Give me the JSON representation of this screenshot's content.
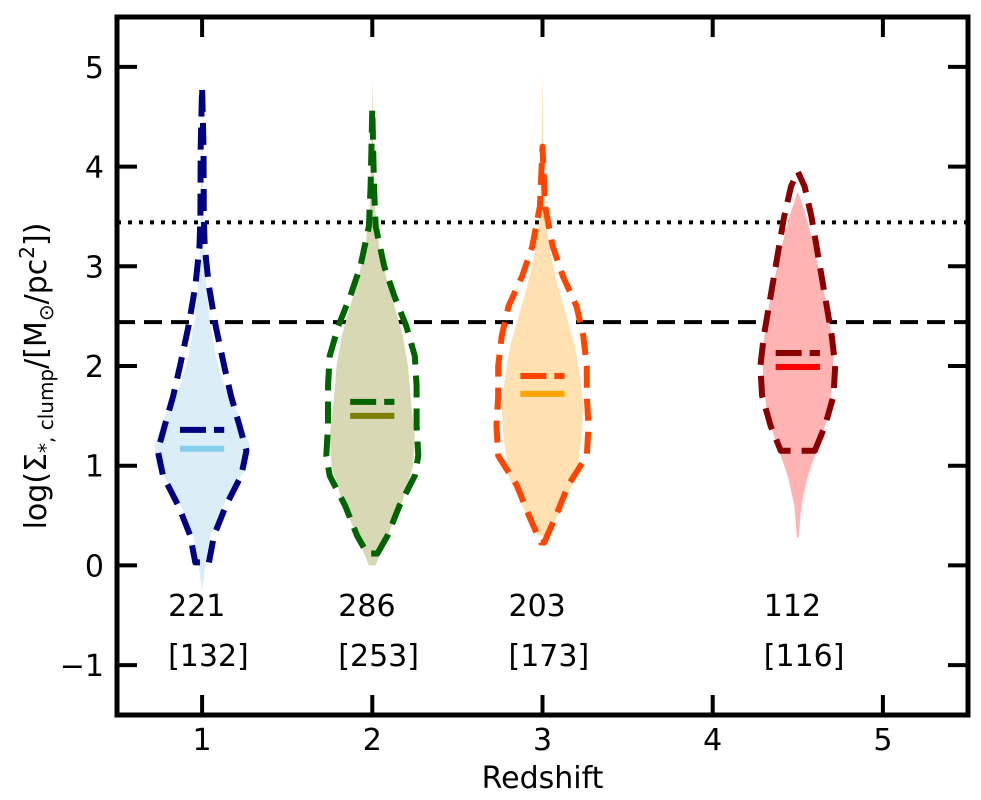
{
  "chart_data": {
    "type": "violin",
    "xlabel": "Redshift",
    "ylabel_parts": {
      "prefix": "log(Σ",
      "sub": "*, clump",
      "mid": "/[M",
      "sun": "⊙",
      "mid2": "/pc",
      "sup": "2",
      "suffix": "])"
    },
    "xlim": [
      0.5,
      5.5
    ],
    "ylim": [
      -1.5,
      5.5
    ],
    "xticks": [
      1,
      2,
      3,
      4,
      5
    ],
    "xtick_labels": [
      "1",
      "2",
      "3",
      "4",
      "5"
    ],
    "yticks": [
      -1,
      0,
      1,
      2,
      3,
      4,
      5
    ],
    "ytick_labels": [
      "−1",
      "0",
      "1",
      "2",
      "3",
      "4",
      "5"
    ],
    "reference_lines": [
      {
        "style": "dotted",
        "y": 3.44,
        "color": "#000000"
      },
      {
        "style": "dashed",
        "y": 2.44,
        "color": "#000000"
      }
    ],
    "violins": [
      {
        "x": 1,
        "fill_color": "#dbeef8",
        "edge_color": "#000080",
        "median_color": "#87ceeb",
        "count": "221",
        "count_bracket": "[132]",
        "median_filled": 1.17,
        "median_dashed": 1.36,
        "filled_profile": [
          [
            -0.25,
            0
          ],
          [
            0.0,
            0.02
          ],
          [
            0.3,
            0.05
          ],
          [
            0.7,
            0.15
          ],
          [
            1.0,
            0.27
          ],
          [
            1.2,
            0.28
          ],
          [
            1.5,
            0.22
          ],
          [
            1.8,
            0.13
          ],
          [
            2.1,
            0.08
          ],
          [
            2.5,
            0.04
          ],
          [
            2.9,
            0.02
          ],
          [
            3.4,
            0.01
          ],
          [
            4.0,
            0.005
          ],
          [
            4.6,
            0
          ]
        ],
        "dashed_profile": [
          [
            0.03,
            0.04
          ],
          [
            0.3,
            0.07
          ],
          [
            0.6,
            0.14
          ],
          [
            0.9,
            0.23
          ],
          [
            1.15,
            0.26
          ],
          [
            1.4,
            0.22
          ],
          [
            1.7,
            0.17
          ],
          [
            2.0,
            0.13
          ],
          [
            2.4,
            0.08
          ],
          [
            2.8,
            0.04
          ],
          [
            3.2,
            0.015
          ],
          [
            3.5,
            0.01
          ],
          [
            4.2,
            0.008
          ],
          [
            4.8,
            0
          ]
        ]
      },
      {
        "x": 2,
        "fill_color": "#d8d8b4",
        "edge_color": "#006400",
        "median_color": "#808000",
        "count": "286",
        "count_bracket": "[253]",
        "median_filled": 1.5,
        "median_dashed": 1.64,
        "filled_profile": [
          [
            0.0,
            0.02
          ],
          [
            0.3,
            0.09
          ],
          [
            0.6,
            0.17
          ],
          [
            1.0,
            0.24
          ],
          [
            1.3,
            0.25
          ],
          [
            1.6,
            0.23
          ],
          [
            2.0,
            0.21
          ],
          [
            2.3,
            0.18
          ],
          [
            2.6,
            0.13
          ],
          [
            2.9,
            0.08
          ],
          [
            3.2,
            0.04
          ],
          [
            3.6,
            0.015
          ],
          [
            4.2,
            0.005
          ],
          [
            4.9,
            0
          ]
        ],
        "dashed_profile": [
          [
            0.12,
            0.03
          ],
          [
            0.3,
            0.09
          ],
          [
            0.6,
            0.16
          ],
          [
            0.9,
            0.25
          ],
          [
            1.1,
            0.27
          ],
          [
            1.4,
            0.26
          ],
          [
            1.8,
            0.26
          ],
          [
            2.1,
            0.25
          ],
          [
            2.4,
            0.2
          ],
          [
            2.7,
            0.13
          ],
          [
            3.0,
            0.07
          ],
          [
            3.4,
            0.02
          ],
          [
            3.8,
            0.01
          ],
          [
            4.58,
            0
          ]
        ]
      },
      {
        "x": 3,
        "fill_color": "#ffe0b0",
        "edge_color": "#ff4500",
        "median_color": "#ffa500",
        "count": "203",
        "count_bracket": "[173]",
        "median_filled": 1.72,
        "median_dashed": 1.9,
        "filled_profile": [
          [
            0.3,
            0.03
          ],
          [
            0.6,
            0.12
          ],
          [
            0.9,
            0.2
          ],
          [
            1.3,
            0.23
          ],
          [
            1.6,
            0.24
          ],
          [
            1.9,
            0.22
          ],
          [
            2.2,
            0.19
          ],
          [
            2.5,
            0.14
          ],
          [
            2.8,
            0.09
          ],
          [
            3.1,
            0.05
          ],
          [
            3.5,
            0.015
          ],
          [
            4.2,
            0.005
          ],
          [
            4.95,
            0
          ]
        ],
        "dashed_profile": [
          [
            0.23,
            0.01
          ],
          [
            0.5,
            0.08
          ],
          [
            0.8,
            0.15
          ],
          [
            1.1,
            0.26
          ],
          [
            1.4,
            0.27
          ],
          [
            1.7,
            0.26
          ],
          [
            2.0,
            0.26
          ],
          [
            2.3,
            0.24
          ],
          [
            2.6,
            0.2
          ],
          [
            2.9,
            0.12
          ],
          [
            3.2,
            0.06
          ],
          [
            3.6,
            0.015
          ],
          [
            4.2,
            0
          ]
        ]
      },
      {
        "x": 4.5,
        "fill_color": "#ffb3b3",
        "edge_color": "#8b0000",
        "median_color": "#ff0000",
        "count": "112",
        "count_bracket": "[116]",
        "median_filled": 1.99,
        "median_dashed": 2.13,
        "filled_profile": [
          [
            0.28,
            0.005
          ],
          [
            0.6,
            0.02
          ],
          [
            0.9,
            0.06
          ],
          [
            1.2,
            0.12
          ],
          [
            1.5,
            0.18
          ],
          [
            1.8,
            0.2
          ],
          [
            2.1,
            0.21
          ],
          [
            2.4,
            0.19
          ],
          [
            2.7,
            0.16
          ],
          [
            3.0,
            0.12
          ],
          [
            3.3,
            0.08
          ],
          [
            3.55,
            0.04
          ],
          [
            3.75,
            0
          ]
        ],
        "dashed_profile": [
          [
            1.15,
            0.1
          ],
          [
            1.4,
            0.16
          ],
          [
            1.7,
            0.21
          ],
          [
            2.0,
            0.22
          ],
          [
            2.3,
            0.2
          ],
          [
            2.6,
            0.17
          ],
          [
            2.9,
            0.14
          ],
          [
            3.2,
            0.11
          ],
          [
            3.5,
            0.08
          ],
          [
            3.8,
            0.04
          ],
          [
            3.95,
            0
          ]
        ]
      }
    ]
  }
}
